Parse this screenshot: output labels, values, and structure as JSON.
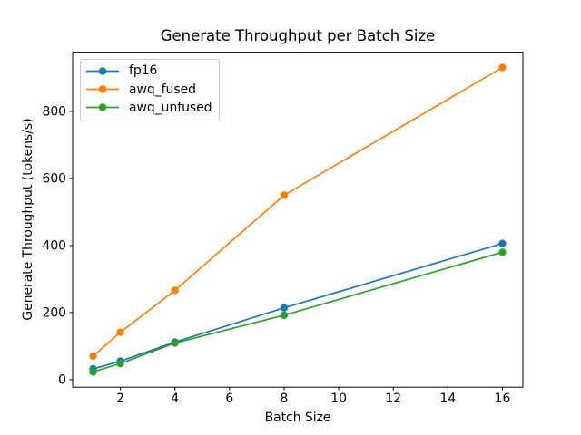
{
  "chart_data": {
    "type": "line",
    "title": "Generate Throughput per Batch Size",
    "xlabel": "Batch Size",
    "ylabel": "Generate Throughput (tokens/s)",
    "x": [
      1,
      2,
      4,
      8,
      16
    ],
    "series": [
      {
        "name": "fp16",
        "color": "#1f77b4",
        "values": [
          32,
          55,
          112,
          214,
          406
        ]
      },
      {
        "name": "awq_fused",
        "color": "#ff7f0e",
        "values": [
          70,
          141,
          266,
          550,
          931
        ]
      },
      {
        "name": "awq_unfused",
        "color": "#2ca02c",
        "values": [
          23,
          48,
          109,
          192,
          380
        ]
      }
    ],
    "xticks": [
      2,
      4,
      6,
      8,
      10,
      12,
      14,
      16
    ],
    "yticks": [
      0,
      200,
      400,
      600,
      800
    ],
    "xlim": [
      0.25,
      16.75
    ],
    "ylim": [
      -22.5,
      976.5
    ],
    "grid": false,
    "marker": "circle",
    "legend": {
      "position": "upper-left",
      "entries": [
        "fp16",
        "awq_fused",
        "awq_unfused"
      ]
    },
    "colors": {
      "background": "#ffffff",
      "axis": "#000000",
      "legend_border": "#cccccc"
    }
  }
}
